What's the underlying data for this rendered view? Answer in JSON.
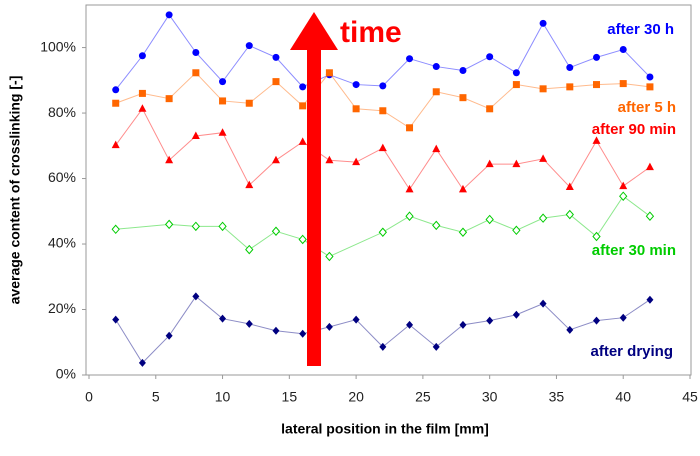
{
  "chart_data": {
    "type": "line",
    "x_label": "lateral position in the film [mm]",
    "y_label": "average  content of crosslinking [-]",
    "annotations": [
      "time"
    ],
    "xlim": [
      0,
      45
    ],
    "xticks": [
      0,
      5,
      10,
      15,
      20,
      25,
      30,
      35,
      40,
      45
    ],
    "ylim": [
      0,
      113
    ],
    "yticks": [
      {
        "value": 0,
        "label": "0%"
      },
      {
        "value": 20,
        "label": "20%"
      },
      {
        "value": 40,
        "label": "40%"
      },
      {
        "value": 60,
        "label": "60%"
      },
      {
        "value": 80,
        "label": "80%"
      },
      {
        "value": 100,
        "label": "100%"
      }
    ],
    "series": [
      {
        "name": "after 30 h",
        "color": "#0000ff",
        "marker": "circle",
        "x": [
          2,
          4,
          6,
          8,
          10,
          12,
          14,
          16,
          18,
          20,
          22,
          24,
          26,
          28,
          30,
          32,
          34,
          36,
          38,
          40,
          42
        ],
        "values": [
          87.1,
          97.5,
          110,
          98.5,
          89.6,
          100.6,
          97,
          88,
          91.7,
          88.7,
          88.3,
          96.6,
          94.2,
          93,
          97.2,
          92.3,
          107.4,
          93.9,
          97,
          99.4,
          91
        ]
      },
      {
        "name": "after 5 h",
        "color": "#ff6600",
        "marker": "square",
        "x": [
          2,
          4,
          6,
          8,
          10,
          12,
          14,
          16,
          18,
          20,
          22,
          24,
          26,
          28,
          30,
          32,
          34,
          36,
          38,
          40,
          42
        ],
        "values": [
          83,
          86,
          84.4,
          92.3,
          83.7,
          83,
          89.6,
          82.2,
          92.3,
          81.3,
          80.7,
          75.5,
          86.5,
          84.7,
          81.3,
          88.7,
          87.4,
          88,
          88.7,
          89,
          88
        ]
      },
      {
        "name": "after 90 min",
        "color": "#ff0000",
        "marker": "triangle",
        "x": [
          2,
          4,
          6,
          8,
          10,
          12,
          14,
          16,
          18,
          20,
          22,
          24,
          26,
          28,
          30,
          32,
          34,
          36,
          38,
          40,
          42
        ],
        "values": [
          70.2,
          81.3,
          65.6,
          73,
          74,
          58,
          65.6,
          71.2,
          65.6,
          65,
          69.3,
          56.7,
          69,
          56.7,
          64.4,
          64.4,
          66,
          57.4,
          71.5,
          57.7,
          63.5
        ]
      },
      {
        "name": "after 30 min",
        "color": "#00cc00",
        "marker": "diamond-open",
        "x": [
          2,
          6,
          8,
          10,
          12,
          14,
          16,
          18,
          22,
          24,
          26,
          28,
          30,
          32,
          34,
          36,
          38,
          40,
          42
        ],
        "values": [
          44.5,
          46,
          45.4,
          45.4,
          38.3,
          43.9,
          41.4,
          36.2,
          43.6,
          48.5,
          45.7,
          43.6,
          47.5,
          44.2,
          47.9,
          49,
          42.3,
          54.6,
          48.5
        ]
      },
      {
        "name": "after drying",
        "color": "#000080",
        "marker": "diamond",
        "x": [
          2,
          4,
          6,
          8,
          10,
          12,
          14,
          16,
          18,
          20,
          22,
          24,
          26,
          28,
          30,
          32,
          34,
          36,
          38,
          40,
          42
        ],
        "values": [
          16.9,
          3.7,
          12,
          24,
          17.2,
          15.6,
          13.5,
          12.6,
          14.7,
          16.9,
          8.6,
          15.3,
          8.6,
          15.3,
          16.6,
          18.4,
          21.8,
          13.8,
          16.6,
          17.5,
          23
        ]
      }
    ]
  }
}
